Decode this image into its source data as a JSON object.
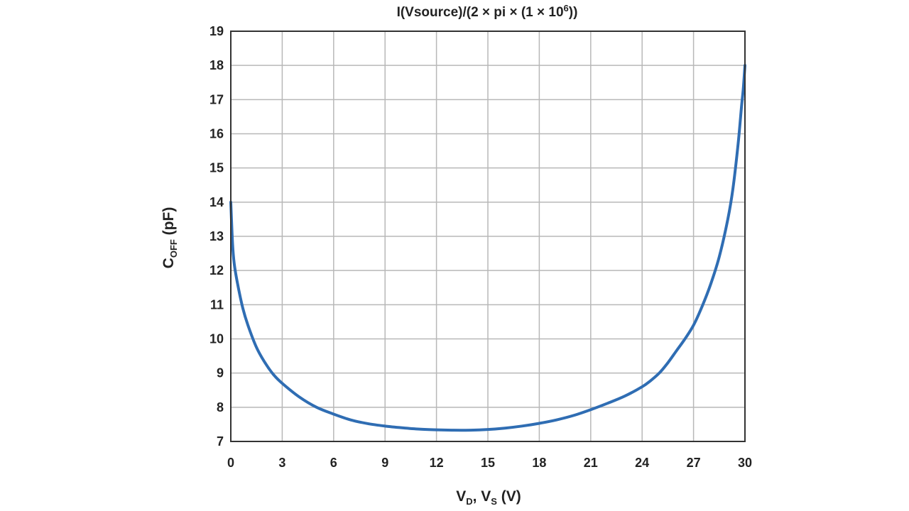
{
  "chart_data": {
    "type": "line",
    "title_parts": {
      "main": "I(Vsource)/(2 × pi × (1 × 10",
      "exp": "6",
      "close": "))"
    },
    "xlabel_parts": {
      "v": "V",
      "d": "D",
      "sep": ", V",
      "s": "S",
      "unit": " (V)"
    },
    "ylabel_parts": {
      "c": "C",
      "sub": "OFF",
      "unit": " (pF)"
    },
    "xlim": [
      0,
      30
    ],
    "ylim": [
      7,
      19
    ],
    "x_ticks": [
      0,
      3,
      6,
      9,
      12,
      15,
      18,
      21,
      24,
      27,
      30
    ],
    "y_ticks": [
      7,
      8,
      9,
      10,
      11,
      12,
      13,
      14,
      15,
      16,
      17,
      18,
      19
    ],
    "grid": true,
    "legend": "none",
    "series": [
      {
        "color": "#2f6db3",
        "x": [
          0,
          0.1,
          0.2,
          0.4,
          0.7,
          1,
          1.5,
          2,
          2.5,
          3,
          4,
          5,
          6,
          7,
          8,
          9,
          10,
          11,
          12,
          13,
          14,
          15,
          16,
          17,
          18,
          19,
          20,
          21,
          22,
          23,
          24,
          24.5,
          25,
          25.5,
          26,
          26.5,
          27,
          27.5,
          28,
          28.5,
          29,
          29.3,
          29.6,
          29.8,
          29.9,
          30
        ],
        "y": [
          14,
          12.8,
          12.2,
          11.6,
          10.9,
          10.4,
          9.75,
          9.3,
          8.95,
          8.7,
          8.3,
          8.0,
          7.8,
          7.63,
          7.52,
          7.45,
          7.4,
          7.36,
          7.34,
          7.33,
          7.33,
          7.35,
          7.39,
          7.45,
          7.53,
          7.63,
          7.76,
          7.93,
          8.12,
          8.33,
          8.6,
          8.78,
          9.0,
          9.3,
          9.65,
          10.0,
          10.4,
          10.95,
          11.6,
          12.4,
          13.5,
          14.4,
          15.7,
          16.8,
          17.3,
          18.0
        ]
      }
    ]
  }
}
